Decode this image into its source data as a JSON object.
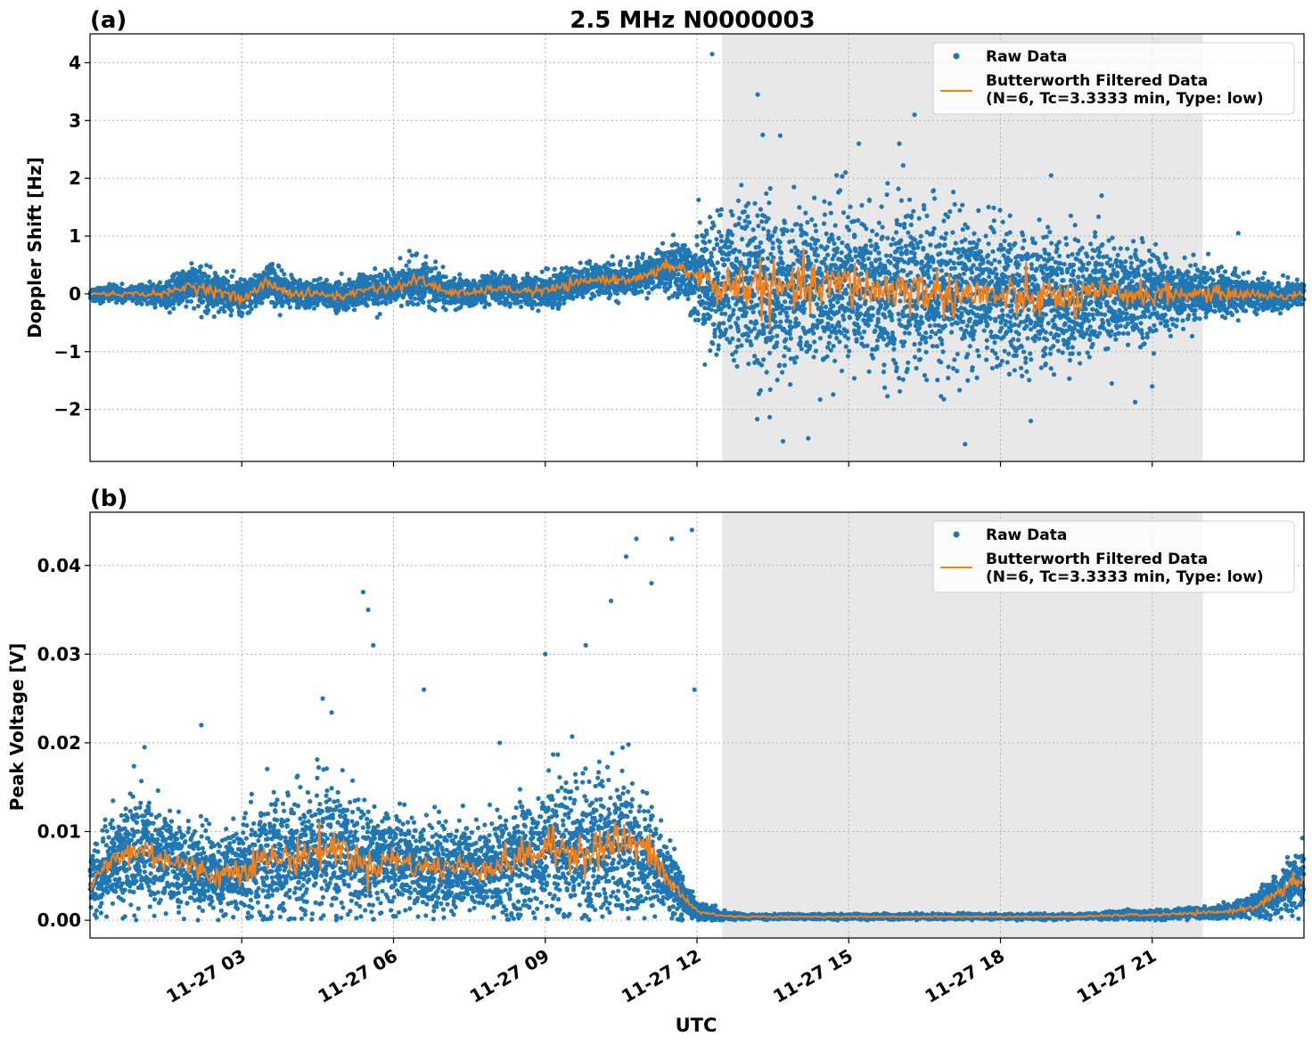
{
  "figure": {
    "title": "2.5 MHz N0000003",
    "xlabel": "UTC",
    "colors": {
      "raw": "#1f77b4",
      "filtered": "#ff7f0e",
      "shade": "#e8e8e8",
      "grid": "#b0b0b0"
    }
  },
  "chart_data": [
    {
      "type": "scatter",
      "panel_label": "(a)",
      "ylabel": "Doppler Shift [Hz]",
      "xlim_hours": [
        1.0,
        25.0
      ],
      "ylim": [
        -2.9,
        4.5
      ],
      "yticks": [
        -2,
        -1,
        0,
        1,
        2,
        3,
        4
      ],
      "yticklabels": [
        "−2",
        "−1",
        "0",
        "1",
        "2",
        "3",
        "4"
      ],
      "shaded_region_utc": [
        "11-27 12:30",
        "11-27 22:00"
      ],
      "grid": true,
      "legend_position": "top-right",
      "series": [
        {
          "name": "Raw Data",
          "style": "points",
          "x_hours": [
            1,
            1.5,
            2,
            2.5,
            3,
            3.5,
            4,
            4.5,
            5,
            5.5,
            6,
            6.5,
            7,
            7.5,
            8,
            8.5,
            9,
            9.5,
            10,
            10.5,
            11,
            11.5,
            12,
            12.5,
            13,
            13.5,
            14,
            14.5,
            15,
            15.5,
            16,
            16.5,
            17,
            17.5,
            18,
            18.5,
            19,
            19.5,
            20,
            20.5,
            21,
            21.5,
            22,
            22.5,
            23,
            23.5,
            24,
            24.5,
            25
          ],
          "y_center": [
            0,
            0,
            0,
            0,
            0.15,
            0.05,
            -0.1,
            0.2,
            0,
            0,
            -0.05,
            0.1,
            0.1,
            0.25,
            0.05,
            0,
            0.1,
            0.05,
            0.05,
            0.15,
            0.25,
            0.25,
            0.3,
            0.5,
            0.3,
            0.1,
            0.2,
            0.05,
            0.1,
            0.1,
            0.2,
            0.05,
            0.1,
            0.05,
            0,
            0,
            -0.05,
            -0.1,
            -0.05,
            -0.1,
            0,
            0,
            0,
            0,
            0,
            0,
            0,
            -0.05,
            0
          ],
          "y_spread": [
            0.15,
            0.15,
            0.15,
            0.2,
            0.4,
            0.35,
            0.3,
            0.4,
            0.3,
            0.25,
            0.25,
            0.3,
            0.3,
            0.4,
            0.3,
            0.25,
            0.25,
            0.25,
            0.3,
            0.3,
            0.3,
            0.3,
            0.3,
            0.45,
            0.8,
            1.3,
            1.7,
            1.6,
            1.5,
            1.5,
            1.6,
            1.5,
            1.5,
            1.4,
            1.4,
            1.3,
            1.3,
            1.3,
            1.2,
            1.2,
            1.0,
            0.9,
            0.8,
            0.6,
            0.5,
            0.45,
            0.3,
            0.3,
            0.25
          ],
          "outliers": [
            [
              13.3,
              4.15
            ],
            [
              14.2,
              3.45
            ],
            [
              14.3,
              2.75
            ],
            [
              14.7,
              -2.55
            ],
            [
              15.2,
              -2.5
            ],
            [
              16.2,
              2.6
            ],
            [
              17.0,
              2.6
            ],
            [
              17.3,
              3.1
            ],
            [
              18.3,
              -2.6
            ],
            [
              19.6,
              -2.2
            ],
            [
              20.0,
              2.05
            ],
            [
              21.2,
              -1.55
            ],
            [
              22.0,
              -1.6
            ],
            [
              21.0,
              1.7
            ],
            [
              23.7,
              1.05
            ]
          ]
        },
        {
          "name": "Butterworth Filtered Data\n(N=6, Tc=3.3333 min, Type: low)",
          "style": "line",
          "x_hours": [
            1,
            1.5,
            2,
            2.5,
            3,
            3.5,
            4,
            4.5,
            5,
            5.5,
            6,
            6.5,
            7,
            7.5,
            8,
            8.5,
            9,
            9.5,
            10,
            10.5,
            11,
            11.5,
            12,
            12.5,
            13,
            13.5,
            14,
            14.5,
            15,
            15.5,
            16,
            16.5,
            17,
            17.5,
            18,
            18.5,
            19,
            19.5,
            20,
            20.5,
            21,
            21.5,
            22,
            22.5,
            23,
            23.5,
            24,
            24.5,
            25
          ],
          "y": [
            0,
            0,
            0,
            0,
            0.15,
            0.05,
            -0.1,
            0.2,
            0,
            0,
            -0.05,
            0.1,
            0.1,
            0.25,
            0.05,
            0,
            0.1,
            0.05,
            0.05,
            0.15,
            0.25,
            0.25,
            0.3,
            0.5,
            0.3,
            0.1,
            0.2,
            0.05,
            0.1,
            0.1,
            0.2,
            0.05,
            0.1,
            0.05,
            0,
            0,
            -0.05,
            -0.1,
            -0.05,
            -0.1,
            0,
            0,
            0,
            0,
            0,
            0,
            0,
            -0.05,
            0
          ]
        }
      ]
    },
    {
      "type": "scatter",
      "panel_label": "(b)",
      "ylabel": "Peak Voltage [V]",
      "xlim_hours": [
        1.0,
        25.0
      ],
      "ylim": [
        -0.002,
        0.046
      ],
      "yticks": [
        0.0,
        0.01,
        0.02,
        0.03,
        0.04
      ],
      "yticklabels": [
        "0.00",
        "0.01",
        "0.02",
        "0.03",
        "0.04"
      ],
      "xticks_hours": [
        4,
        7,
        10,
        13,
        16,
        19,
        22
      ],
      "xticklabels": [
        "11-27 03",
        "11-27 06",
        "11-27 09",
        "11-27 12",
        "11-27 15",
        "11-27 18",
        "11-27 21"
      ],
      "shaded_region_utc": [
        "11-27 12:30",
        "11-27 22:00"
      ],
      "grid": true,
      "legend_position": "top-right",
      "series": [
        {
          "name": "Raw Data",
          "style": "points",
          "x_hours": [
            1,
            1.5,
            2,
            2.5,
            3,
            3.5,
            4,
            4.5,
            5,
            5.5,
            6,
            6.5,
            7,
            7.5,
            8,
            8.5,
            9,
            9.5,
            10,
            10.5,
            11,
            11.5,
            12,
            12.5,
            13,
            13.5,
            14,
            14.5,
            15,
            15.5,
            16,
            16.5,
            17,
            17.5,
            18,
            18.5,
            19,
            19.5,
            20,
            20.5,
            21,
            21.5,
            22,
            22.5,
            23,
            23.5,
            24,
            24.5,
            25
          ],
          "y_center": [
            0.004,
            0.007,
            0.008,
            0.007,
            0.006,
            0.005,
            0.006,
            0.007,
            0.007,
            0.008,
            0.008,
            0.006,
            0.007,
            0.006,
            0.006,
            0.006,
            0.006,
            0.007,
            0.008,
            0.008,
            0.008,
            0.009,
            0.008,
            0.004,
            0.001,
            0.0005,
            0.0004,
            0.0004,
            0.0004,
            0.0004,
            0.0004,
            0.0004,
            0.0004,
            0.0004,
            0.0004,
            0.0004,
            0.0004,
            0.0004,
            0.0004,
            0.0004,
            0.0005,
            0.0006,
            0.0006,
            0.0007,
            0.0008,
            0.001,
            0.0015,
            0.003,
            0.005
          ],
          "y_spread": [
            0.004,
            0.006,
            0.007,
            0.006,
            0.005,
            0.005,
            0.006,
            0.007,
            0.007,
            0.008,
            0.008,
            0.006,
            0.006,
            0.005,
            0.006,
            0.005,
            0.006,
            0.007,
            0.008,
            0.009,
            0.009,
            0.009,
            0.008,
            0.004,
            0.001,
            0.0005,
            0.0003,
            0.0003,
            0.0003,
            0.0003,
            0.0003,
            0.0003,
            0.0003,
            0.0003,
            0.0003,
            0.0003,
            0.0003,
            0.0003,
            0.0003,
            0.0003,
            0.0004,
            0.0005,
            0.0005,
            0.0006,
            0.0007,
            0.0008,
            0.0012,
            0.0025,
            0.004
          ],
          "outliers": [
            [
              3.2,
              0.022
            ],
            [
              6.4,
              0.037
            ],
            [
              6.5,
              0.035
            ],
            [
              6.6,
              0.031
            ],
            [
              7.6,
              0.026
            ],
            [
              10.0,
              0.03
            ],
            [
              10.8,
              0.031
            ],
            [
              11.3,
              0.036
            ],
            [
              11.6,
              0.041
            ],
            [
              11.8,
              0.043
            ],
            [
              12.1,
              0.038
            ],
            [
              12.5,
              0.043
            ],
            [
              12.9,
              0.044
            ],
            [
              5.6,
              0.025
            ],
            [
              9.1,
              0.02
            ],
            [
              12.95,
              0.026
            ]
          ]
        },
        {
          "name": "Butterworth Filtered Data\n(N=6, Tc=3.3333 min, Type: low)",
          "style": "line",
          "x_hours": [
            1,
            1.5,
            2,
            2.5,
            3,
            3.5,
            4,
            4.5,
            5,
            5.5,
            6,
            6.5,
            7,
            7.5,
            8,
            8.5,
            9,
            9.5,
            10,
            10.5,
            11,
            11.5,
            12,
            12.5,
            13,
            13.5,
            14,
            14.5,
            15,
            15.5,
            16,
            16.5,
            17,
            17.5,
            18,
            18.5,
            19,
            19.5,
            20,
            20.5,
            21,
            21.5,
            22,
            22.5,
            23,
            23.5,
            24,
            24.5,
            25
          ],
          "y": [
            0.004,
            0.007,
            0.008,
            0.007,
            0.006,
            0.005,
            0.006,
            0.007,
            0.007,
            0.008,
            0.008,
            0.006,
            0.007,
            0.006,
            0.006,
            0.006,
            0.006,
            0.007,
            0.008,
            0.008,
            0.008,
            0.009,
            0.008,
            0.004,
            0.001,
            0.0005,
            0.0004,
            0.0004,
            0.0004,
            0.0004,
            0.0004,
            0.0004,
            0.0004,
            0.0004,
            0.0004,
            0.0004,
            0.0004,
            0.0004,
            0.0004,
            0.0004,
            0.0005,
            0.0006,
            0.0006,
            0.0007,
            0.0008,
            0.001,
            0.0015,
            0.003,
            0.005
          ]
        }
      ]
    }
  ]
}
